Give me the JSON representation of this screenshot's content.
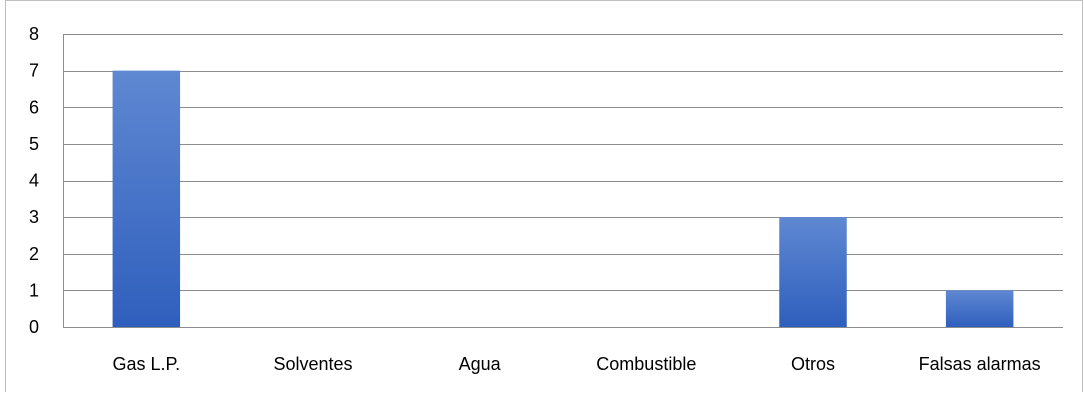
{
  "chart_data": {
    "type": "bar",
    "title": "",
    "xlabel": "",
    "ylabel": "",
    "categories": [
      "Gas L.P.",
      "Solventes",
      "Agua",
      "Combustible",
      "Otros",
      "Falsas alarmas"
    ],
    "values": [
      7,
      0,
      0,
      0,
      3,
      1
    ],
    "ylim": [
      0,
      8
    ],
    "yticks": [
      0,
      1,
      2,
      3,
      4,
      5,
      6,
      7,
      8
    ],
    "grid": true,
    "legend": "none",
    "colors": {
      "bar_top": "#5f88d2",
      "bar_bottom": "#2f5fbd",
      "grid": "#8c8c8c"
    }
  }
}
